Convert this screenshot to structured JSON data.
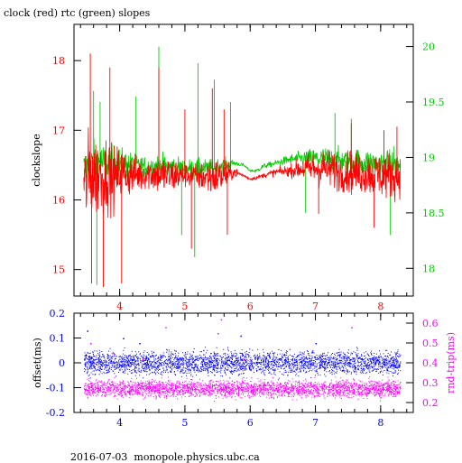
{
  "page": {
    "title": "clock (red) rtc (green) slopes",
    "footer": "2016-07-03  monopole.physics.ubc.ca"
  },
  "colors": {
    "clock": "#ff0000",
    "rtc": "#00cc00",
    "offset": "#0000ff",
    "rnd_trip": "#ff00ff",
    "axis": "#000000"
  },
  "chart_data": [
    {
      "id": "slopes",
      "type": "line",
      "title": "clock (red) rtc (green) slopes",
      "xlabel": "",
      "ylabel": "clockslope",
      "y2label": "",
      "xlim": [
        3.3,
        8.5
      ],
      "ylim": [
        14.62,
        18.52
      ],
      "y2lim": [
        17.75,
        20.2
      ],
      "xticks": [
        4,
        5,
        6,
        7,
        8
      ],
      "yticks": [
        15,
        16,
        17,
        18
      ],
      "y2ticks": [
        18,
        18.5,
        19,
        19.5,
        20
      ],
      "tick_label_color": "#ff0000",
      "y2_tick_label_color": "#00cc00",
      "series": [
        {
          "name": "clock",
          "axis": "left",
          "color": "#ff0000",
          "x": [
            3.45,
            3.5,
            3.55,
            3.6,
            3.65,
            3.7,
            3.75,
            3.8,
            3.85,
            3.9,
            4.0,
            4.2,
            4.4,
            4.6,
            4.8,
            5.0,
            5.2,
            5.4,
            5.6,
            5.75,
            5.9,
            6.0,
            6.1,
            6.2,
            6.4,
            6.6,
            6.8,
            7.0,
            7.2,
            7.4,
            7.6,
            7.8,
            8.0,
            8.2,
            8.3
          ],
          "y": [
            16.2,
            16.3,
            16.4,
            16.3,
            16.35,
            16.4,
            16.3,
            16.4,
            16.35,
            16.3,
            16.4,
            16.35,
            16.38,
            16.36,
            16.35,
            16.35,
            16.34,
            16.32,
            16.35,
            16.4,
            16.35,
            16.3,
            16.32,
            16.35,
            16.4,
            16.42,
            16.45,
            16.45,
            16.45,
            16.4,
            16.4,
            16.38,
            16.36,
            16.35,
            16.35
          ],
          "spread": [
            0.9,
            1.1,
            1.2,
            1.0,
            1.1,
            1.0,
            0.9,
            1.0,
            0.9,
            0.8,
            0.7,
            0.5,
            0.4,
            0.5,
            0.5,
            0.3,
            0.35,
            0.5,
            0.4,
            0.15,
            0.04,
            0.04,
            0.05,
            0.06,
            0.1,
            0.15,
            0.3,
            0.45,
            0.5,
            0.5,
            0.55,
            0.55,
            0.6,
            0.6,
            0.5
          ],
          "spikes": [
            [
              3.55,
              18.1
            ],
            [
              3.57,
              14.8
            ],
            [
              3.75,
              14.75
            ],
            [
              3.85,
              17.9
            ],
            [
              4.03,
              14.8
            ],
            [
              4.6,
              17.9
            ],
            [
              5.0,
              17.3
            ],
            [
              5.1,
              15.3
            ],
            [
              5.42,
              17.6
            ],
            [
              5.6,
              17.3
            ],
            [
              5.65,
              15.5
            ],
            [
              7.05,
              15.8
            ],
            [
              7.55,
              17.1
            ],
            [
              7.9,
              15.6
            ],
            [
              8.05,
              17.0
            ],
            [
              8.25,
              17.05
            ]
          ]
        },
        {
          "name": "rtc",
          "axis": "right",
          "color": "#00cc00",
          "x": [
            3.45,
            3.6,
            3.8,
            4.0,
            4.2,
            4.4,
            4.6,
            4.8,
            5.0,
            5.2,
            5.4,
            5.6,
            5.75,
            5.9,
            6.0,
            6.1,
            6.2,
            6.4,
            6.6,
            6.8,
            7.0,
            7.2,
            7.4,
            7.6,
            7.8,
            8.0,
            8.2,
            8.3
          ],
          "y": [
            18.9,
            18.95,
            18.95,
            18.95,
            18.93,
            18.92,
            18.92,
            18.91,
            18.9,
            18.9,
            18.9,
            18.93,
            18.95,
            18.93,
            18.88,
            18.88,
            18.92,
            18.95,
            18.98,
            18.99,
            18.99,
            18.98,
            18.97,
            18.96,
            18.95,
            18.94,
            18.93,
            18.93
          ],
          "spread": [
            0.3,
            0.35,
            0.3,
            0.25,
            0.2,
            0.15,
            0.2,
            0.2,
            0.15,
            0.15,
            0.15,
            0.12,
            0.05,
            0.02,
            0.02,
            0.03,
            0.04,
            0.05,
            0.08,
            0.12,
            0.18,
            0.2,
            0.2,
            0.2,
            0.22,
            0.22,
            0.22,
            0.22
          ],
          "spikes": [
            [
              3.6,
              19.6
            ],
            [
              3.65,
              17.85
            ],
            [
              3.7,
              19.5
            ],
            [
              4.25,
              19.55
            ],
            [
              4.6,
              20.0
            ],
            [
              4.95,
              18.3
            ],
            [
              5.15,
              18.1
            ],
            [
              5.2,
              19.85
            ],
            [
              5.45,
              19.7
            ],
            [
              5.7,
              19.5
            ],
            [
              6.85,
              18.5
            ],
            [
              7.3,
              19.4
            ],
            [
              7.55,
              19.35
            ],
            [
              8.15,
              18.3
            ],
            [
              8.2,
              19.1
            ]
          ]
        }
      ]
    },
    {
      "id": "offset",
      "type": "scatter",
      "xlabel": "",
      "ylabel": "offset(ms)",
      "y2label": "rnd-trip(ms)",
      "xlim": [
        3.3,
        8.5
      ],
      "ylim": [
        -0.2,
        0.2
      ],
      "y2lim": [
        0.15,
        0.65
      ],
      "xticks": [
        4,
        5,
        6,
        7,
        8
      ],
      "yticks": [
        -0.2,
        -0.1,
        0,
        0.1,
        0.2
      ],
      "y2ticks": [
        0.2,
        0.3,
        0.4,
        0.5,
        0.6
      ],
      "tick_label_color": "#0000ff",
      "y2_tick_label_color": "#ff00ff",
      "series": [
        {
          "name": "offset",
          "axis": "left",
          "color": "#0000ff",
          "x_range": [
            3.45,
            8.3
          ],
          "center": 0.0,
          "spread": 0.045,
          "outliers": [
            [
              3.5,
              0.13
            ],
            [
              4.05,
              0.1
            ],
            [
              4.3,
              0.08
            ],
            [
              5.85,
              0.11
            ],
            [
              7.0,
              0.08
            ],
            [
              7.8,
              -0.12
            ]
          ]
        },
        {
          "name": "rnd-trip",
          "axis": "right",
          "color": "#ff00ff",
          "x_range": [
            3.45,
            8.3
          ],
          "center": 0.27,
          "spread": 0.04,
          "outliers": [
            [
              3.55,
              0.5
            ],
            [
              4.7,
              0.58
            ],
            [
              5.55,
              0.62
            ],
            [
              5.5,
              0.55
            ],
            [
              5.9,
              0.42
            ],
            [
              6.6,
              0.47
            ],
            [
              6.8,
              0.45
            ],
            [
              7.55,
              0.58
            ],
            [
              3.9,
              0.45
            ],
            [
              4.35,
              0.42
            ]
          ]
        }
      ]
    }
  ]
}
